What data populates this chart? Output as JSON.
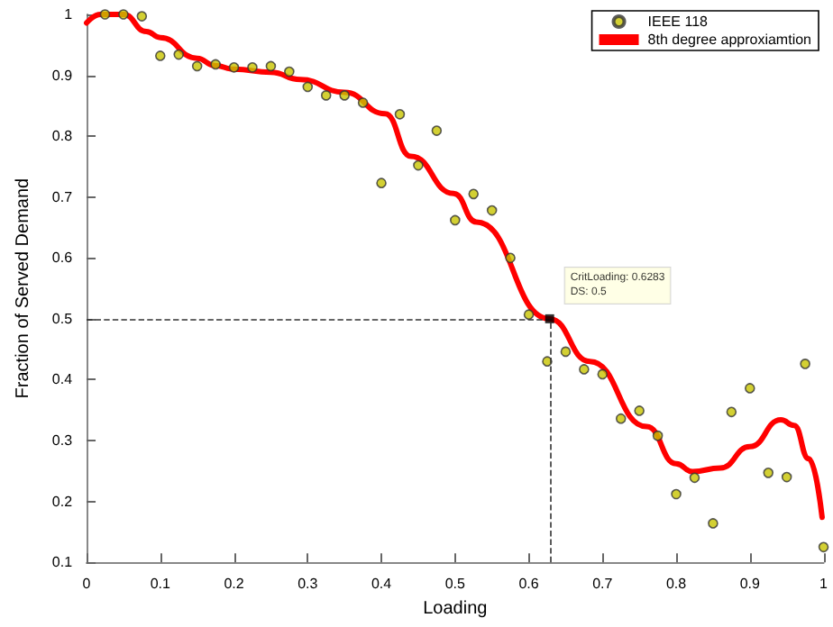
{
  "chart_data": {
    "type": "scatter",
    "xlabel": "Loading",
    "ylabel": "Fraction of Served Demand",
    "xlim": [
      0,
      1
    ],
    "ylim": [
      0.1,
      1
    ],
    "xticks": [
      0,
      0.1,
      0.2,
      0.3,
      0.4,
      0.5,
      0.6,
      0.7,
      0.8,
      0.9,
      1
    ],
    "yticks": [
      0.1,
      0.2,
      0.3,
      0.4,
      0.5,
      0.6,
      0.7,
      0.8,
      0.9,
      1
    ],
    "grid": false,
    "legend": "top right",
    "series": [
      {
        "name": "IEEE 118",
        "marker": "circle",
        "color": "#c8c400",
        "x": [
          0.025,
          0.05,
          0.075,
          0.1,
          0.125,
          0.15,
          0.175,
          0.2,
          0.225,
          0.25,
          0.275,
          0.3,
          0.325,
          0.35,
          0.375,
          0.4,
          0.425,
          0.45,
          0.475,
          0.5,
          0.525,
          0.55,
          0.575,
          0.6,
          0.625,
          0.65,
          0.675,
          0.7,
          0.725,
          0.75,
          0.775,
          0.8,
          0.825,
          0.85,
          0.875,
          0.9,
          0.925,
          0.95,
          0.975,
          1
        ],
        "values": [
          1.0,
          1.0,
          0.997,
          0.932,
          0.934,
          0.915,
          0.918,
          0.913,
          0.913,
          0.915,
          0.906,
          0.881,
          0.867,
          0.867,
          0.855,
          0.723,
          0.836,
          0.752,
          0.809,
          0.662,
          0.705,
          0.678,
          0.6,
          0.507,
          0.43,
          0.446,
          0.417,
          0.409,
          0.336,
          0.349,
          0.308,
          0.212,
          0.239,
          0.164,
          0.347,
          0.386,
          0.247,
          0.24,
          0.426,
          0.125
        ]
      },
      {
        "name": "8th degree approxiamtion",
        "type": "line",
        "marker": "none",
        "line_style": "solid",
        "color": "#ff0000",
        "x": [
          0,
          0.019,
          0.05,
          0.081,
          0.1,
          0.15,
          0.174,
          0.2,
          0.25,
          0.29,
          0.35,
          0.405,
          0.44,
          0.498,
          0.529,
          0.6283,
          0.683,
          0.76,
          0.8,
          0.822,
          0.86,
          0.9,
          0.942,
          0.96,
          0.98,
          0.998
        ],
        "values": [
          0.986,
          1.0,
          1.0,
          0.972,
          0.962,
          0.928,
          0.916,
          0.91,
          0.905,
          0.893,
          0.872,
          0.837,
          0.767,
          0.706,
          0.659,
          0.5,
          0.43,
          0.323,
          0.262,
          0.249,
          0.255,
          0.29,
          0.334,
          0.325,
          0.27,
          0.174
        ]
      }
    ],
    "ref_lines": [
      {
        "axis": "y",
        "value": 0.5,
        "color": "#333333",
        "line_style": "dashed"
      },
      {
        "axis": "x",
        "value": 0.6283,
        "color": "#333333",
        "line_style": "dashed"
      }
    ],
    "annotations": [
      {
        "text": "CritLoading: 0.6283\nDS: 0.5",
        "x": 0.6283,
        "y": 0.5
      }
    ]
  }
}
